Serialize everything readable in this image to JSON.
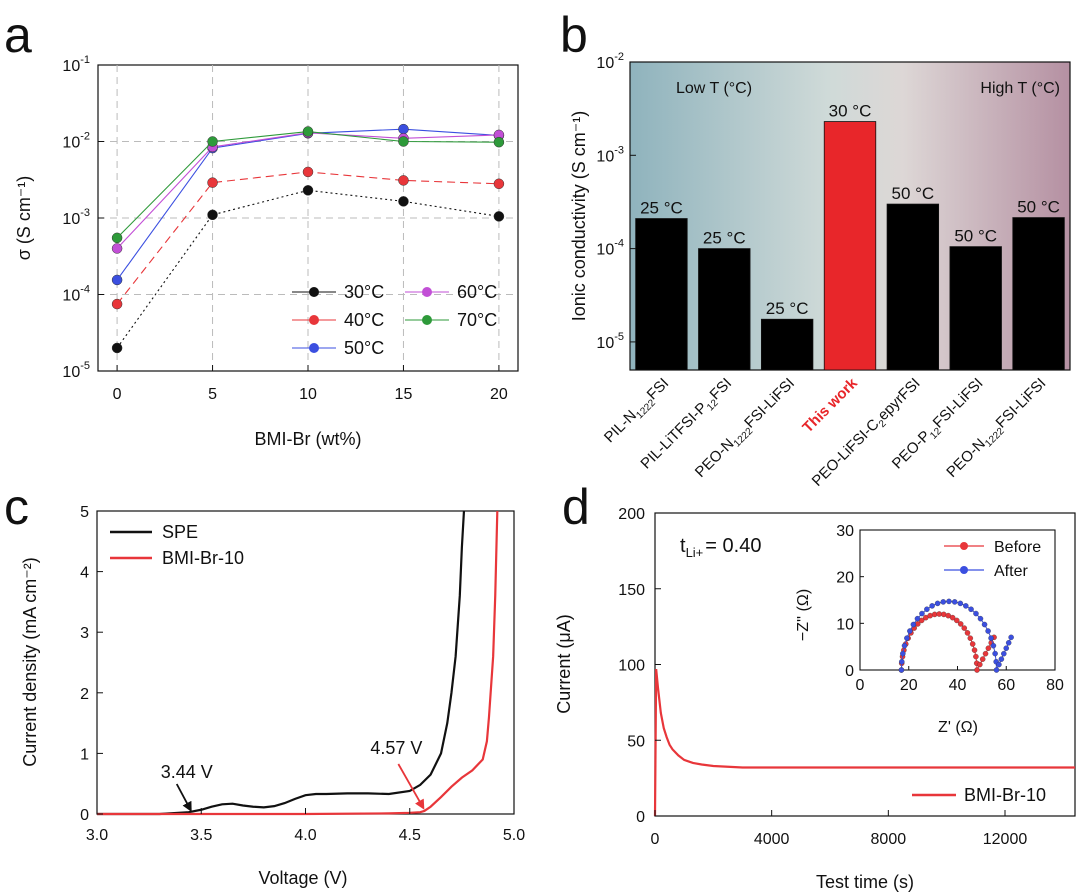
{
  "figure": {
    "panel_labels": [
      "a",
      "b",
      "c",
      "d"
    ]
  },
  "chart_data": [
    {
      "panel": "a",
      "type": "line",
      "ylabel": "σ (S cm⁻¹)",
      "xlabel": "BMI-Br (wt%)",
      "yscale": "log",
      "ylim": [
        1e-05,
        0.1
      ],
      "xlim": [
        -1,
        21
      ],
      "xticks": [
        0,
        5,
        10,
        15,
        20
      ],
      "yticks": [
        {
          "value": 1e-05,
          "base": "10",
          "exp": "-5"
        },
        {
          "value": 0.0001,
          "base": "10",
          "exp": "-4"
        },
        {
          "value": 0.001,
          "base": "10",
          "exp": "-3"
        },
        {
          "value": 0.01,
          "base": "10",
          "exp": "-2"
        },
        {
          "value": 0.1,
          "base": "10",
          "exp": "-1"
        }
      ],
      "grid": true,
      "legend_position": "bottom-right",
      "x": [
        0,
        5,
        10,
        15,
        20
      ],
      "series": [
        {
          "name": "30°C",
          "color": "#111111",
          "dash": "2,3",
          "values": [
            2e-05,
            0.0011,
            0.0023,
            0.00165,
            0.00105
          ]
        },
        {
          "name": "40°C",
          "color": "#e8363a",
          "dash": "8,5",
          "values": [
            7.5e-05,
            0.0029,
            0.004,
            0.0031,
            0.0028
          ]
        },
        {
          "name": "50°C",
          "color": "#3b4fe0",
          "dash": "",
          "values": [
            0.000155,
            0.0082,
            0.0128,
            0.0145,
            0.012
          ]
        },
        {
          "name": "60°C",
          "color": "#c24fd6",
          "dash": "",
          "values": [
            0.0004,
            0.0085,
            0.013,
            0.011,
            0.0122
          ]
        },
        {
          "name": "70°C",
          "color": "#2e9a3a",
          "dash": "",
          "values": [
            0.00055,
            0.01,
            0.0135,
            0.01,
            0.0098
          ]
        }
      ]
    },
    {
      "panel": "b",
      "type": "bar",
      "ylabel": "Ionic conductivity (S cm⁻¹)",
      "yscale": "log",
      "ylim": [
        5e-06,
        0.01
      ],
      "yticks": [
        {
          "value": 1e-05,
          "base": "10",
          "exp": "-5"
        },
        {
          "value": 0.0001,
          "base": "10",
          "exp": "-4"
        },
        {
          "value": 0.001,
          "base": "10",
          "exp": "-3"
        },
        {
          "value": 0.01,
          "base": "10",
          "exp": "-2"
        }
      ],
      "background_left": "Low T (°C)",
      "background_right": "High T (°C)",
      "bars": [
        {
          "label": "PIL-N1222FSI",
          "parts": [
            [
              "PIL-N",
              ""
            ],
            [
              "1222",
              "sub"
            ],
            [
              "FSI",
              ""
            ]
          ],
          "value": 0.00021,
          "temp": "25 °C",
          "color": "#000000",
          "highlight": false
        },
        {
          "label": "PIL-LiTFSI-P12FSI",
          "parts": [
            [
              "PIL-LiTFSI-P",
              ""
            ],
            [
              "12",
              "sub"
            ],
            [
              "FSI",
              ""
            ]
          ],
          "value": 0.0001,
          "temp": "25 °C",
          "color": "#000000",
          "highlight": false
        },
        {
          "label": "PEO-N1222FSI-LiFSI",
          "parts": [
            [
              "PEO-N",
              ""
            ],
            [
              "1222",
              "sub"
            ],
            [
              "FSI-LiFSI",
              ""
            ]
          ],
          "value": 1.75e-05,
          "temp": "25 °C",
          "color": "#000000",
          "highlight": false
        },
        {
          "label": "This work",
          "parts": [
            [
              "This work",
              ""
            ]
          ],
          "value": 0.0023,
          "temp": "30 °C",
          "color": "#e8262a",
          "highlight": true
        },
        {
          "label": "PEO-LiFSI-C2epyrFSI",
          "parts": [
            [
              "PEO-LiFSI-C",
              ""
            ],
            [
              "2",
              "sub"
            ],
            [
              "epyrFSI",
              ""
            ]
          ],
          "value": 0.0003,
          "temp": "50 °C",
          "color": "#000000",
          "highlight": false
        },
        {
          "label": "PEO-P12FSI-LiFSI",
          "parts": [
            [
              "PEO-P",
              ""
            ],
            [
              "12",
              "sub"
            ],
            [
              "FSI-LiFSI",
              ""
            ]
          ],
          "value": 0.000105,
          "temp": "50 °C",
          "color": "#000000",
          "highlight": false
        },
        {
          "label": "PEO-N1222FSI-LiFSI",
          "parts": [
            [
              "PEO-N",
              ""
            ],
            [
              "1222",
              "sub"
            ],
            [
              "FSI-LiFSI",
              ""
            ]
          ],
          "value": 0.000215,
          "temp": "50 °C",
          "color": "#000000",
          "highlight": false
        }
      ]
    },
    {
      "panel": "c",
      "type": "line",
      "xlabel": "Voltage (V)",
      "ylabel": "Current density (mA cm⁻²)",
      "xlim": [
        3.0,
        5.0
      ],
      "ylim": [
        0,
        5
      ],
      "xticks": [
        "3.0",
        "3.5",
        "4.0",
        "4.5",
        "5.0"
      ],
      "yticks": [
        "0",
        "1",
        "2",
        "3",
        "4",
        "5"
      ],
      "legend_position": "top-left",
      "annotations": [
        {
          "text": "3.44 V",
          "x": 3.44,
          "y": 0.03,
          "color": "#111111"
        },
        {
          "text": "4.57 V",
          "x": 4.57,
          "y": 0.05,
          "color": "#e8363a"
        }
      ],
      "series": [
        {
          "name": "SPE",
          "color": "#111111",
          "x": [
            3.0,
            3.3,
            3.44,
            3.5,
            3.55,
            3.6,
            3.65,
            3.7,
            3.75,
            3.8,
            3.85,
            3.9,
            3.95,
            4.0,
            4.05,
            4.1,
            4.2,
            4.3,
            4.4,
            4.5,
            4.55,
            4.6,
            4.65,
            4.68,
            4.7,
            4.72,
            4.74,
            4.75,
            4.76
          ],
          "y": [
            0.0,
            0.0,
            0.03,
            0.07,
            0.12,
            0.16,
            0.17,
            0.14,
            0.12,
            0.11,
            0.13,
            0.18,
            0.25,
            0.31,
            0.33,
            0.33,
            0.34,
            0.34,
            0.33,
            0.38,
            0.48,
            0.65,
            1.0,
            1.5,
            2.0,
            2.6,
            3.6,
            4.4,
            5.0
          ]
        },
        {
          "name": "BMI-Br-10",
          "color": "#e8363a",
          "x": [
            3.0,
            3.5,
            4.0,
            4.4,
            4.5,
            4.55,
            4.57,
            4.6,
            4.65,
            4.7,
            4.75,
            4.8,
            4.85,
            4.87,
            4.88,
            4.9,
            4.91,
            4.92
          ],
          "y": [
            0.0,
            0.0,
            0.0,
            0.01,
            0.02,
            0.03,
            0.05,
            0.12,
            0.28,
            0.45,
            0.6,
            0.72,
            0.9,
            1.2,
            1.6,
            2.6,
            3.6,
            5.0
          ]
        }
      ]
    },
    {
      "panel": "d",
      "type": "line",
      "xlabel": "Test time (s)",
      "ylabel": "Current (μA)",
      "xlim": [
        0,
        14400
      ],
      "ylim": [
        0,
        200
      ],
      "xticks": [
        "0",
        "4000",
        "8000",
        "12000"
      ],
      "yticks": [
        "0",
        "50",
        "100",
        "150",
        "200"
      ],
      "annotation": {
        "prefix": "t",
        "sub": "Li+",
        "suffix": "= 0.40"
      },
      "legend_position": "bottom-right",
      "series": [
        {
          "name": "BMI-Br-10",
          "color": "#e8363a",
          "x": [
            0,
            40,
            100,
            200,
            300,
            400,
            500,
            600,
            800,
            1000,
            1300,
            1600,
            2000,
            2500,
            3000,
            4000,
            6000,
            8000,
            10000,
            12000,
            14400
          ],
          "y": [
            0,
            97,
            85,
            68,
            58,
            52,
            47,
            44,
            40,
            37,
            35,
            34,
            33,
            32.5,
            32,
            32,
            32,
            32,
            32,
            32,
            32
          ]
        }
      ]
    },
    {
      "panel": "d-inset",
      "type": "scatter",
      "xlabel": "Z' (Ω)",
      "ylabel": "−Z'' (Ω)",
      "xlim": [
        0,
        80
      ],
      "ylim": [
        0,
        30
      ],
      "xticks": [
        "0",
        "20",
        "40",
        "60",
        "80"
      ],
      "yticks": [
        "0",
        "10",
        "20",
        "30"
      ],
      "legend_position": "top-right",
      "series": [
        {
          "name": "Before",
          "color": "#e8363a",
          "x_start": 17,
          "x_end": 48,
          "peak": 12,
          "tail_end_x": 55,
          "tail_end_y": 7
        },
        {
          "name": "After",
          "color": "#3b4fe0",
          "x_start": 17,
          "x_end": 56,
          "peak": 14.7,
          "tail_end_x": 62,
          "tail_end_y": 7
        }
      ]
    }
  ]
}
